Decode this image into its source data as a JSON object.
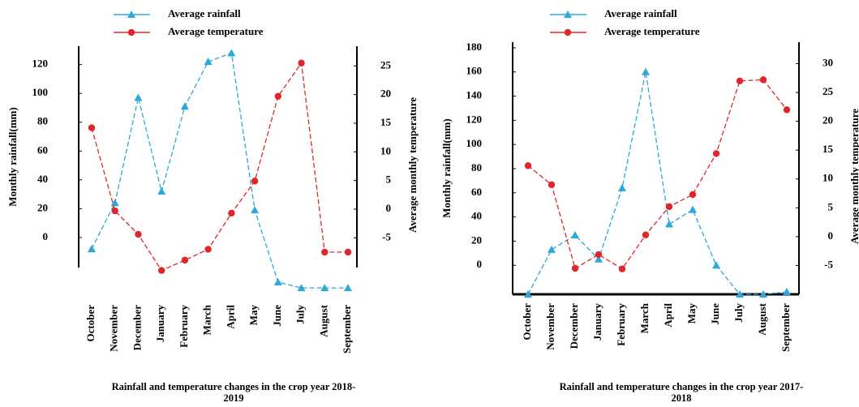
{
  "chart_data": [
    {
      "type": "line",
      "title": "Rainfall and temperature changes in the crop year 2018-2019",
      "ylabel": "Monthly rainfall(mm)",
      "y2label": "Average monthly temperature",
      "categories": [
        "October",
        "November",
        "December",
        "January",
        "February",
        "March",
        "April",
        "May",
        "June",
        "July",
        "August",
        "September"
      ],
      "series": [
        {
          "name": "Average rainfall",
          "color": "#2ea8d8",
          "marker": "triangle",
          "values": [
            -8,
            24,
            97,
            32,
            91,
            122,
            128,
            19,
            -31,
            -35,
            -35,
            -35
          ]
        },
        {
          "name": "Average temperature",
          "color": "#e0262a",
          "marker": "circle",
          "axis": "y2",
          "values": [
            14.2,
            -0.3,
            -4.4,
            -10.7,
            -8.9,
            -7,
            -0.7,
            4.9,
            19.7,
            25.5,
            -7.5,
            -7.5
          ]
        }
      ],
      "ylim": [
        -40,
        135
      ],
      "yticks": [
        0,
        20,
        40,
        60,
        80,
        100,
        120
      ],
      "y2lim": [
        -15,
        29
      ],
      "y2ticks": [
        -5,
        0,
        5,
        10,
        15,
        20,
        25
      ]
    },
    {
      "type": "line",
      "title": "Rainfall and temperature changes in the crop year 2017-2018",
      "ylabel": "Monthly rainfall(mm)",
      "y2label": "Average monthly temperature",
      "categories": [
        "October",
        "November",
        "December",
        "January",
        "February",
        "March",
        "April",
        "May",
        "June",
        "July",
        "August",
        "September"
      ],
      "series": [
        {
          "name": "Average rainfall",
          "color": "#2ea8d8",
          "marker": "triangle",
          "values": [
            -24,
            13,
            25,
            5,
            64,
            160,
            34,
            46,
            0,
            -24,
            -24,
            -22
          ]
        },
        {
          "name": "Average temperature",
          "color": "#e0262a",
          "marker": "circle",
          "axis": "y2",
          "values": [
            12.3,
            9,
            -5.5,
            -3.1,
            -5.6,
            0.3,
            5.2,
            7.3,
            14.4,
            27,
            27.2,
            22
          ]
        }
      ],
      "ylim": [
        -24,
        186
      ],
      "yticks": [
        0,
        20,
        40,
        60,
        80,
        100,
        120,
        140,
        160,
        180
      ],
      "y2lim": [
        -10,
        34
      ],
      "y2ticks": [
        -5,
        0,
        5,
        10,
        15,
        20,
        25,
        30
      ]
    }
  ]
}
